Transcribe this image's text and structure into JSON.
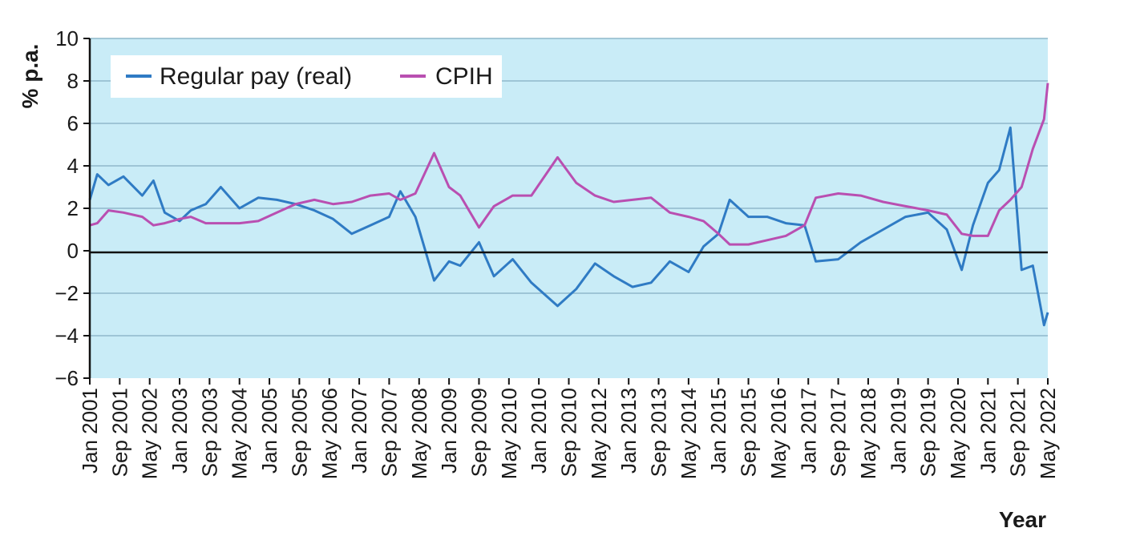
{
  "chart_data": {
    "type": "line",
    "ylabel": "% p.a.",
    "xlabel": "Year",
    "ylim": [
      -6,
      10
    ],
    "yticks": [
      10,
      8,
      6,
      4,
      2,
      0,
      -2,
      -4,
      -6
    ],
    "x_start": "Jan 2001",
    "x_end": "May 2022",
    "xtick_labels": [
      "Jan 2001",
      "Sep 2001",
      "May 2002",
      "Jan 2003",
      "Sep 2003",
      "May 2004",
      "Jan 2005",
      "Sep 2005",
      "May 2006",
      "Jan 2007",
      "Sep 2007",
      "May 2008",
      "Jan 2009",
      "Sep 2009",
      "May 2010",
      "Jan 2010",
      "Sep 2010",
      "May 2012",
      "Jan 2013",
      "Sep 2013",
      "May 2014",
      "Jan 2015",
      "Sep 2015",
      "May 2016",
      "Jan 2017",
      "Sep 2017",
      "May 2018",
      "Jan 2019",
      "Sep 2019",
      "May 2020",
      "Jan 2021",
      "Sep 2021",
      "May 2022"
    ],
    "grid": true,
    "legend_position": "top-left",
    "colors": {
      "plot_background": "#c9ecf7",
      "grid": "#8fb8cc",
      "zero_line": "#111111"
    },
    "series": [
      {
        "name": "Regular pay (real)",
        "color": "#2f7bc4",
        "x": [
          "Jan 2001",
          "Mar 2001",
          "Jun 2001",
          "Oct 2001",
          "Mar 2002",
          "Jun 2002",
          "Sep 2002",
          "Jan 2003",
          "Apr 2003",
          "Aug 2003",
          "Dec 2003",
          "May 2004",
          "Oct 2004",
          "Mar 2005",
          "Aug 2005",
          "Jan 2006",
          "Jun 2006",
          "Nov 2006",
          "Apr 2007",
          "Sep 2007",
          "Dec 2007",
          "Apr 2008",
          "Sep 2008",
          "Jan 2009",
          "Apr 2009",
          "Sep 2009",
          "Jan 2010",
          "Jun 2010",
          "Nov 2010",
          "Jun 2011",
          "Nov 2011",
          "Apr 2012",
          "Sep 2012",
          "Feb 2013",
          "Jul 2013",
          "Dec 2013",
          "May 2014",
          "Sep 2014",
          "Jan 2015",
          "Apr 2015",
          "Sep 2015",
          "Feb 2016",
          "Jul 2016",
          "Dec 2016",
          "Mar 2017",
          "Sep 2017",
          "Mar 2018",
          "Sep 2018",
          "Mar 2019",
          "Sep 2019",
          "Feb 2020",
          "Jun 2020",
          "Sep 2020",
          "Jan 2021",
          "Apr 2021",
          "Jul 2021",
          "Oct 2021",
          "Jan 2022",
          "Apr 2022",
          "May 2022"
        ],
        "values": [
          2.4,
          3.6,
          3.1,
          3.5,
          2.6,
          3.3,
          1.8,
          1.4,
          1.9,
          2.2,
          3.0,
          2.0,
          2.5,
          2.4,
          2.2,
          1.9,
          1.5,
          0.8,
          1.2,
          1.6,
          2.8,
          1.6,
          -1.4,
          -0.5,
          -0.7,
          0.4,
          -1.2,
          -0.4,
          -1.5,
          -2.6,
          -1.8,
          -0.6,
          -1.2,
          -1.7,
          -1.5,
          -0.5,
          -1.0,
          0.2,
          0.8,
          2.4,
          1.6,
          1.6,
          1.3,
          1.2,
          -0.5,
          -0.4,
          0.4,
          1.0,
          1.6,
          1.8,
          1.0,
          -0.9,
          1.2,
          3.2,
          3.8,
          5.8,
          -0.9,
          -0.7,
          -3.5,
          -2.9
        ]
      },
      {
        "name": "CPIH",
        "color": "#b94fb1",
        "x": [
          "Jan 2001",
          "Mar 2001",
          "Jun 2001",
          "Oct 2001",
          "Mar 2002",
          "Jun 2002",
          "Sep 2002",
          "Jan 2003",
          "Apr 2003",
          "Aug 2003",
          "Dec 2003",
          "May 2004",
          "Oct 2004",
          "Mar 2005",
          "Aug 2005",
          "Jan 2006",
          "Jun 2006",
          "Nov 2006",
          "Apr 2007",
          "Sep 2007",
          "Dec 2007",
          "Apr 2008",
          "Sep 2008",
          "Jan 2009",
          "Apr 2009",
          "Sep 2009",
          "Jan 2010",
          "Jun 2010",
          "Nov 2010",
          "Jun 2011",
          "Nov 2011",
          "Apr 2012",
          "Sep 2012",
          "Feb 2013",
          "Jul 2013",
          "Dec 2013",
          "May 2014",
          "Sep 2014",
          "Jan 2015",
          "Apr 2015",
          "Sep 2015",
          "Feb 2016",
          "Jul 2016",
          "Dec 2016",
          "Mar 2017",
          "Sep 2017",
          "Mar 2018",
          "Sep 2018",
          "Mar 2019",
          "Sep 2019",
          "Feb 2020",
          "Jun 2020",
          "Sep 2020",
          "Jan 2021",
          "Apr 2021",
          "Jul 2021",
          "Oct 2021",
          "Jan 2022",
          "Apr 2022",
          "May 2022"
        ],
        "values": [
          1.2,
          1.3,
          1.9,
          1.8,
          1.6,
          1.2,
          1.3,
          1.5,
          1.6,
          1.3,
          1.3,
          1.3,
          1.4,
          1.8,
          2.2,
          2.4,
          2.2,
          2.3,
          2.6,
          2.7,
          2.4,
          2.7,
          4.6,
          3.0,
          2.6,
          1.1,
          2.1,
          2.6,
          2.6,
          4.4,
          3.2,
          2.6,
          2.3,
          2.4,
          2.5,
          1.8,
          1.6,
          1.4,
          0.8,
          0.3,
          0.3,
          0.5,
          0.7,
          1.2,
          2.5,
          2.7,
          2.6,
          2.3,
          2.1,
          1.9,
          1.7,
          0.8,
          0.7,
          0.7,
          1.9,
          2.4,
          3.0,
          4.8,
          6.2,
          7.9
        ]
      }
    ]
  }
}
